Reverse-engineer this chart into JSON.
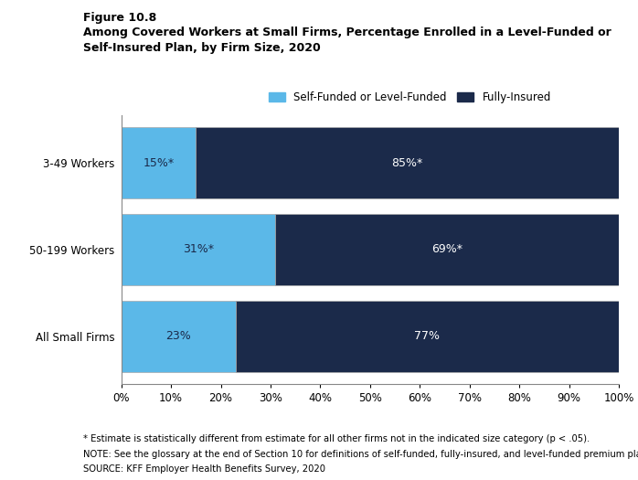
{
  "figure_label": "Figure 10.8",
  "title_line1": "Among Covered Workers at Small Firms, Percentage Enrolled in a Level-Funded or",
  "title_line2": "Self-Insured Plan, by Firm Size, 2020",
  "categories": [
    "3-49 Workers",
    "50-199 Workers",
    "All Small Firms"
  ],
  "self_funded_values": [
    15,
    31,
    23
  ],
  "fully_insured_values": [
    85,
    69,
    77
  ],
  "self_funded_labels": [
    "15%*",
    "31%*",
    "23%"
  ],
  "fully_insured_labels": [
    "85%*",
    "69%*",
    "77%"
  ],
  "color_self_funded": "#5BB8E8",
  "color_fully_insured": "#1B2A4A",
  "legend_label_self": "Self-Funded or Level-Funded",
  "legend_label_fully": "Fully-Insured",
  "note1": "* Estimate is statistically different from estimate for all other firms not in the indicated size category (p < .05).",
  "note2": "NOTE: See the glossary at the end of Section 10 for definitions of self-funded, fully-insured, and level-funded premium plans.",
  "note3": "SOURCE: KFF Employer Health Benefits Survey, 2020",
  "bar_height": 0.82,
  "xlim": [
    0,
    100
  ],
  "xticks": [
    0,
    10,
    20,
    30,
    40,
    50,
    60,
    70,
    80,
    90,
    100
  ],
  "background_color": "#ffffff",
  "bar_edge_color": "#aaaaaa",
  "text_color_inside_white": "#ffffff",
  "text_color_dark": "#1B2A4A"
}
